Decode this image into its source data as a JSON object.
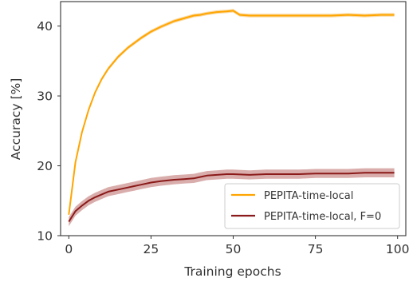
{
  "chart_data": {
    "type": "line",
    "title": "",
    "xlabel": "Training epochs",
    "ylabel": "Accuracy [%]",
    "xlim": [
      -2.5,
      102.5
    ],
    "ylim": [
      10,
      43.5
    ],
    "xticks": [
      0,
      25,
      50,
      75,
      100
    ],
    "xtick_labels": [
      "0",
      "25",
      "50",
      "75",
      "100"
    ],
    "yticks": [
      10,
      20,
      30,
      40
    ],
    "ytick_labels": [
      "10",
      "20",
      "30",
      "40"
    ],
    "grid": false,
    "legend_position": "lower-right",
    "series": [
      {
        "name": "PEPITA-time-local",
        "color": "#ffa500",
        "band_color": "#f7c97a",
        "x": [
          0,
          2,
          4,
          6,
          8,
          10,
          12,
          15,
          18,
          20,
          22,
          25,
          28,
          30,
          32,
          35,
          38,
          40,
          42,
          45,
          48,
          50,
          52,
          55,
          60,
          65,
          70,
          75,
          80,
          85,
          90,
          95,
          99
        ],
        "y": [
          13.0,
          20.5,
          24.8,
          28.0,
          30.5,
          32.4,
          33.9,
          35.6,
          36.9,
          37.6,
          38.3,
          39.2,
          39.9,
          40.3,
          40.7,
          41.1,
          41.5,
          41.6,
          41.8,
          42.0,
          42.1,
          42.2,
          41.6,
          41.5,
          41.5,
          41.5,
          41.5,
          41.5,
          41.5,
          41.6,
          41.5,
          41.6,
          41.6
        ],
        "band": 0.25
      },
      {
        "name": "PEPITA-time-local, F=0",
        "color": "#8b1a1a",
        "band_color": "#c98a88",
        "x": [
          0,
          2,
          4,
          6,
          8,
          10,
          12,
          15,
          18,
          20,
          22,
          25,
          28,
          30,
          32,
          35,
          38,
          40,
          42,
          45,
          48,
          50,
          55,
          60,
          65,
          70,
          75,
          80,
          85,
          90,
          95,
          99
        ],
        "y": [
          12.0,
          13.5,
          14.3,
          15.0,
          15.5,
          15.9,
          16.3,
          16.6,
          16.9,
          17.1,
          17.3,
          17.6,
          17.8,
          17.9,
          18.0,
          18.1,
          18.2,
          18.4,
          18.6,
          18.7,
          18.8,
          18.8,
          18.7,
          18.8,
          18.8,
          18.8,
          18.9,
          18.9,
          18.9,
          19.0,
          19.0,
          19.0
        ],
        "band": 0.65
      }
    ]
  }
}
